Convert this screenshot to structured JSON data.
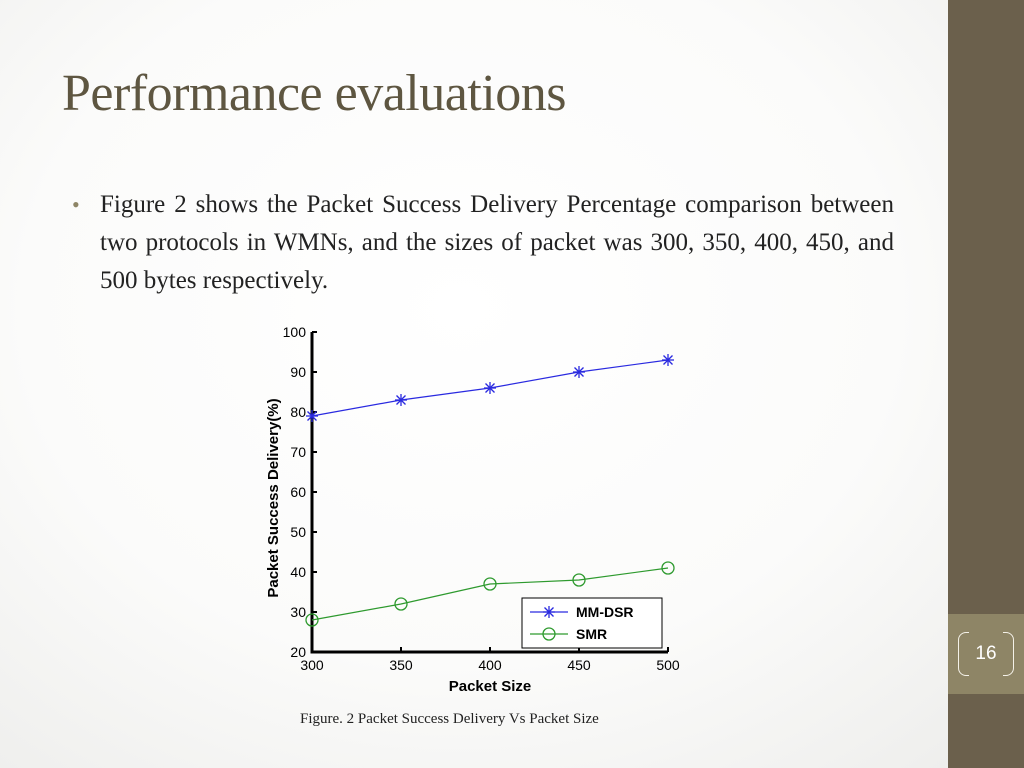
{
  "slide": {
    "title": "Performance evaluations",
    "bullet": "Figure 2 shows the Packet Success Delivery Percentage comparison between two protocols in WMNs, and the sizes of packet was 300, 350, 400, 450, and 500 bytes respectively.",
    "page_number": "16",
    "caption": "Figure. 2  Packet Success Delivery Vs Packet Size"
  },
  "colors": {
    "title": "#5e5641",
    "sidebar": "#6b604c",
    "page_box": "#8e8566",
    "mm_dsr": "#2a2ae0",
    "smr": "#2e9a2e"
  },
  "chart_data": {
    "type": "line",
    "xlabel": "Packet Size",
    "ylabel": "Packet Success Delivery(%)",
    "x": [
      300,
      350,
      400,
      450,
      500
    ],
    "xlim": [
      300,
      500
    ],
    "ylim": [
      20,
      100
    ],
    "xticks": [
      "300",
      "350",
      "400",
      "450",
      "500"
    ],
    "yticks": [
      "20",
      "30",
      "40",
      "50",
      "60",
      "70",
      "80",
      "90",
      "100"
    ],
    "legend_position": "bottom-right",
    "series": [
      {
        "name": "MM-DSR",
        "values": [
          79,
          83,
          86,
          90,
          93
        ],
        "marker": "star",
        "color": "#2a2ae0"
      },
      {
        "name": "SMR",
        "values": [
          28,
          32,
          37,
          38,
          41
        ],
        "marker": "circle",
        "color": "#2e9a2e"
      }
    ]
  }
}
